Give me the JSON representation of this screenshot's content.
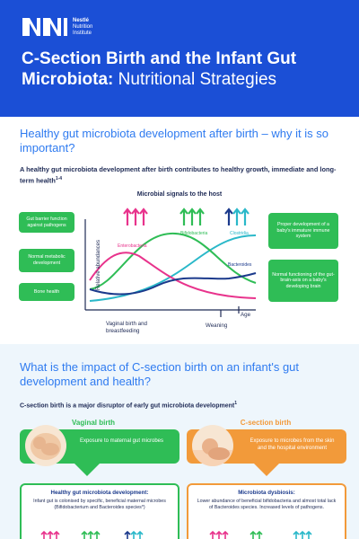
{
  "header": {
    "logo_lines": [
      "Nestlé",
      "Nutrition",
      "Institute"
    ],
    "title_line1": "C-Section Birth and the Infant Gut",
    "title_line2_bold": "Microbiota:",
    "title_line2_light": " Nutritional Strategies"
  },
  "section1": {
    "title": "Healthy gut microbiota development after birth – why it is so important?",
    "subtitle": "A healthy gut microbiota development after birth contributes to healthy growth, immediate and long-term health",
    "subtitle_ref": "1-4",
    "chart_title": "Microbial signals to the host",
    "left_boxes": [
      "Gut barrier function against pathogens",
      "Normal metabolic development",
      "Bone health"
    ],
    "right_boxes": [
      "Proper development of a baby's immature immune system",
      "Normal functioning of the gut-brain-axis on a baby's developing brain"
    ],
    "y_label": "Relative abundances",
    "x_labels": [
      "Vaginal birth and breastfeeding",
      "Weaning",
      "Age"
    ],
    "series_labels": [
      "Enterobacteria",
      "Bifidobacteria",
      "Clostridia",
      "Bacteroides"
    ]
  },
  "section2": {
    "title": "What is the impact of C-section birth on an infant's gut development and health?",
    "subtitle": "C-section birth is a major disruptor of early gut microbiota development",
    "subtitle_ref": "1",
    "vaginal": {
      "heading": "Vaginal birth",
      "band_text": "Exposure to maternal gut microbes",
      "card_title": "Healthy gut microbiota development:",
      "card_body": "Infant gut is colonised by specific, beneficial maternal microbes (Bifidobacterium and Bacteroides species*)"
    },
    "csection": {
      "heading": "C-section birth",
      "band_text": "Exposure to microbes from the skin and the hospital environment",
      "card_title": "Microbiota dysbiosis:",
      "card_body": "Lower abundance of beneficial bifidobacteria and almost total lack of Bacteroides species. Increased levels of pathogens."
    }
  },
  "colors": {
    "brand_blue": "#1b4fd6",
    "heading_blue": "#2f7bf0",
    "green": "#2fbd56",
    "orange": "#f29a3a",
    "pink": "#e8338c",
    "teal": "#2ab8c9",
    "navy": "#1b3a8c"
  }
}
